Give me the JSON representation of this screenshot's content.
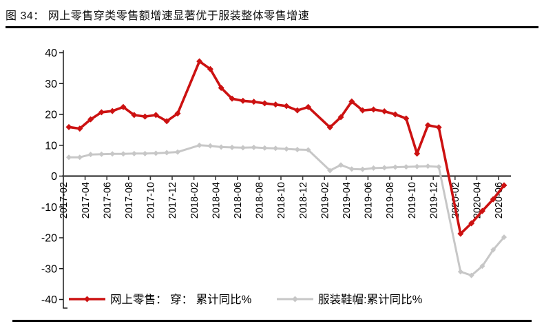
{
  "figure": {
    "title": "图 34：  网上零售穿类零售额增速显著优于服装整体零售增速"
  },
  "chart_data": {
    "type": "line",
    "title": "网上零售穿类零售额增速显著优于服装整体零售增速",
    "xlabel": "",
    "ylabel": "",
    "ylim": [
      -40,
      40
    ],
    "y_ticks": [
      40,
      30,
      20,
      10,
      0,
      -10,
      -20,
      -30,
      -40
    ],
    "x_tick_every": 2,
    "grid": false,
    "legend_position": "bottom",
    "x": [
      "2017-02",
      "2017-03",
      "2017-04",
      "2017-05",
      "2017-06",
      "2017-07",
      "2017-08",
      "2017-09",
      "2017-10",
      "2017-11",
      "2017-12",
      "2018-01",
      "2018-02",
      "2018-03",
      "2018-04",
      "2018-05",
      "2018-06",
      "2018-07",
      "2018-08",
      "2018-09",
      "2018-10",
      "2018-11",
      "2018-12",
      "2019-01",
      "2019-02",
      "2019-03",
      "2019-04",
      "2019-05",
      "2019-06",
      "2019-07",
      "2019-08",
      "2019-09",
      "2019-10",
      "2019-11",
      "2019-12",
      "2020-01",
      "2020-02",
      "2020-03",
      "2020-04",
      "2020-05",
      "2020-06"
    ],
    "series": [
      {
        "name": "服装鞋帽:累计同比%",
        "key": "clothing-footwear-hats",
        "color": "#c7c7c7",
        "marker": "diamond",
        "values": [
          6.1,
          6.1,
          7.0,
          7.1,
          7.2,
          7.2,
          7.3,
          7.3,
          7.4,
          7.6,
          7.8,
          null,
          10.0,
          9.8,
          9.4,
          9.3,
          9.2,
          9.3,
          9.1,
          9.0,
          8.8,
          8.6,
          8.5,
          null,
          1.8,
          3.6,
          2.3,
          2.2,
          2.6,
          2.7,
          2.9,
          3.0,
          3.1,
          3.2,
          3.0,
          null,
          -31.0,
          -32.2,
          -29.2,
          -23.9,
          -19.8
        ]
      },
      {
        "name": "网上零售： 穿： 累计同比%",
        "key": "online-retail-wear",
        "color": "#cc1111",
        "marker": "diamond",
        "values": [
          15.9,
          15.4,
          18.4,
          20.7,
          21.1,
          22.4,
          19.8,
          19.3,
          19.8,
          17.8,
          20.3,
          null,
          37.2,
          34.7,
          28.6,
          25.1,
          24.4,
          24.1,
          23.6,
          23.2,
          22.7,
          21.3,
          22.4,
          null,
          15.8,
          19.1,
          24.2,
          21.3,
          21.6,
          21.0,
          20.0,
          18.7,
          7.3,
          16.5,
          15.8,
          null,
          -18.7,
          -15.3,
          -11.3,
          -7.5,
          -3.0
        ]
      }
    ],
    "legend_order": [
      1,
      0
    ]
  },
  "colors": {
    "x_axis": "#3a3a3a",
    "y_axis": "#1a1a1a",
    "label_text": "#000000",
    "rule": "#000000",
    "background": "#ffffff"
  }
}
